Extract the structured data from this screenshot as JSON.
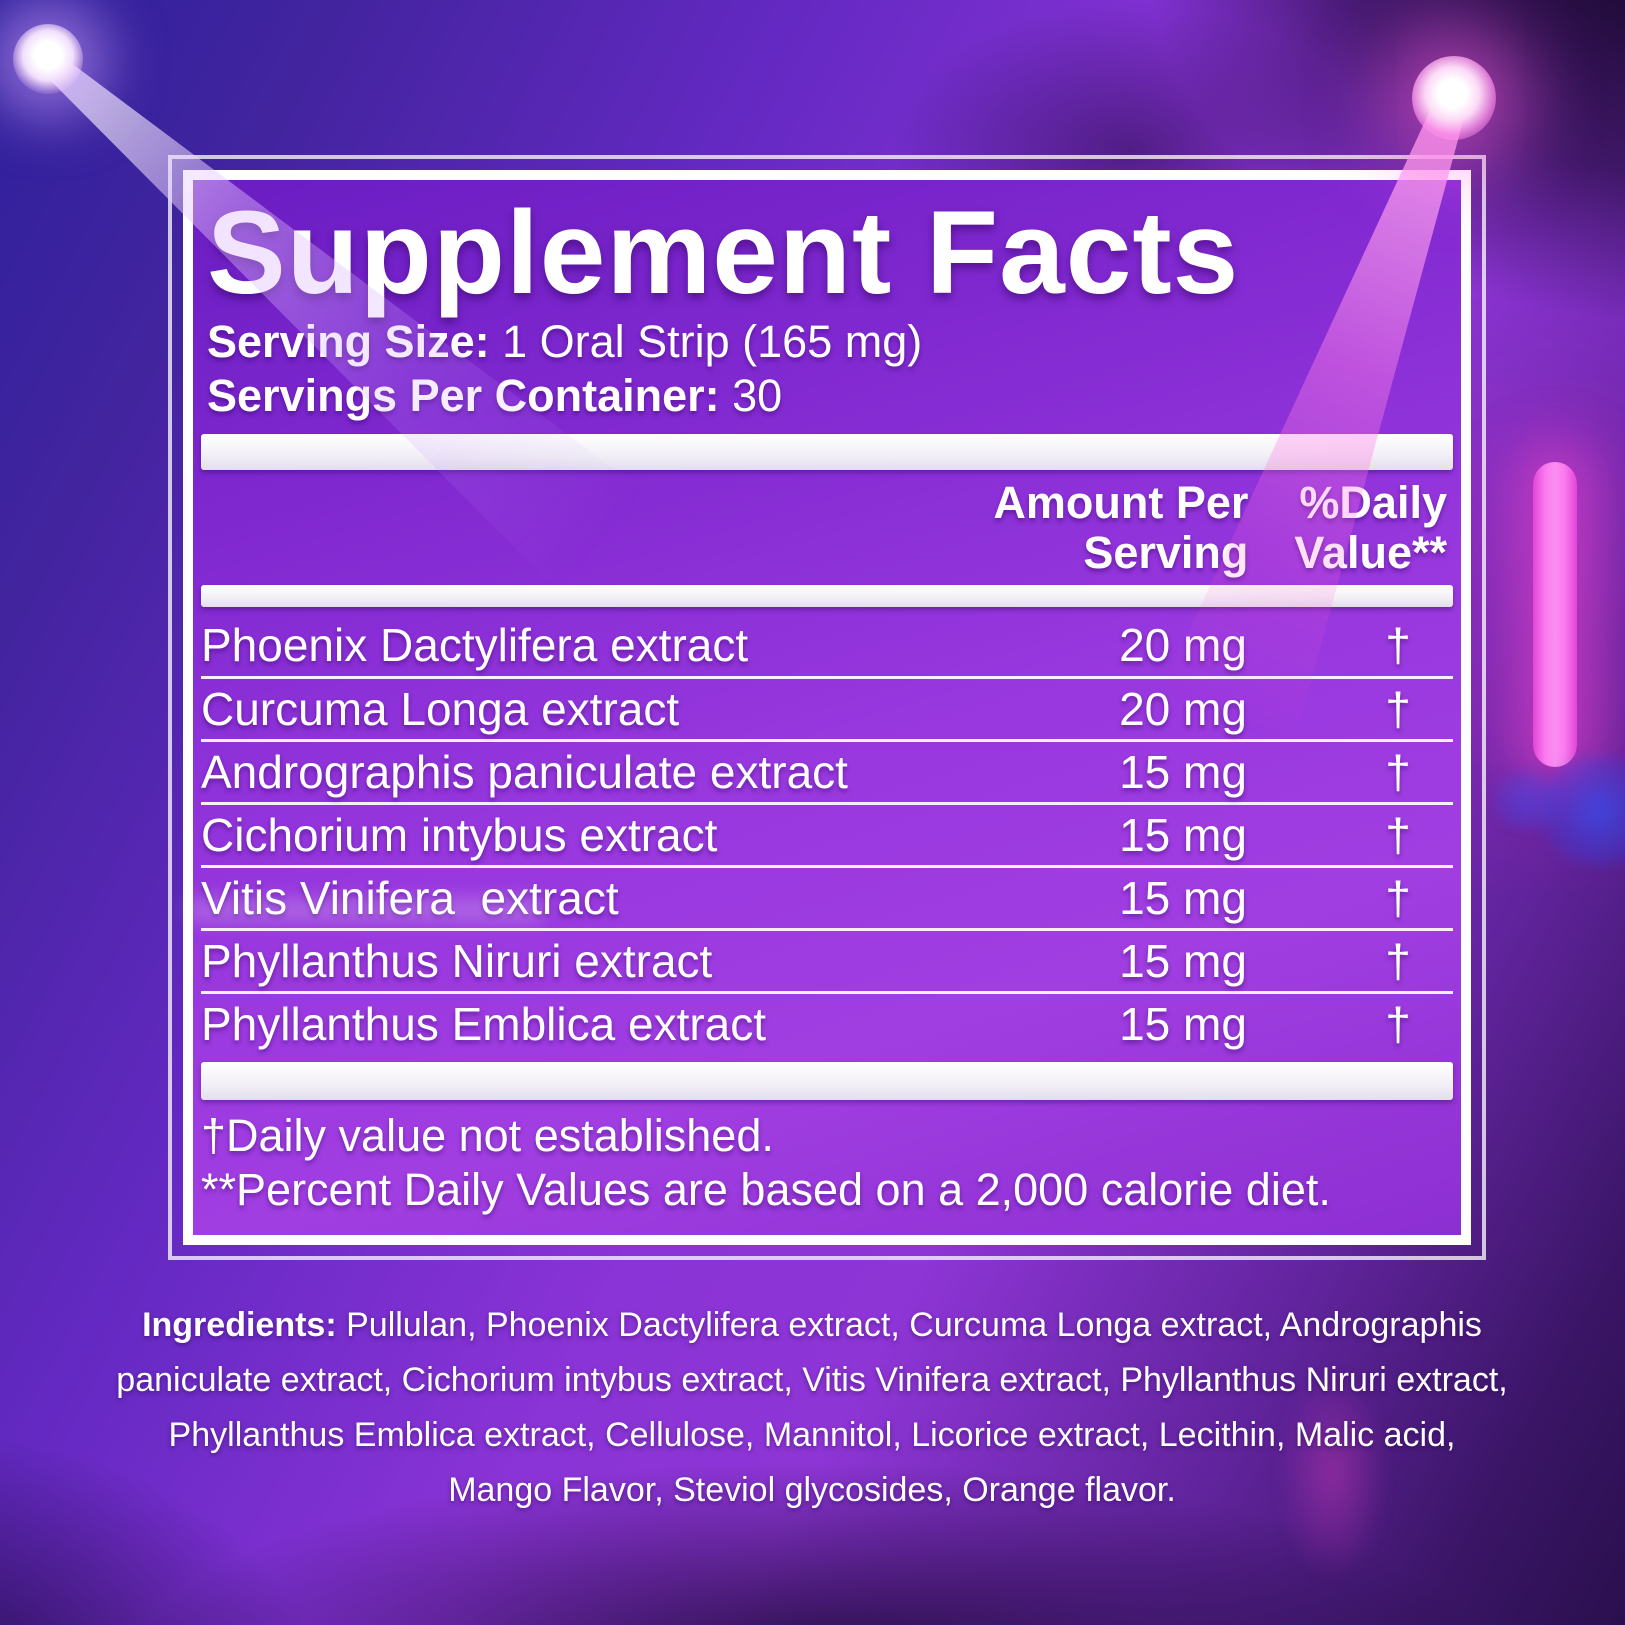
{
  "panel": {
    "title": "Supplement Facts",
    "serving_size_label": "Serving Size:",
    "serving_size_value": " 1 Oral Strip (165 mg)",
    "servings_per_container_label": "Servings Per Container:",
    "servings_per_container_value": " 30",
    "col_amount_header": "Amount Per\nServing",
    "col_dv_header": "%Daily\nValue**"
  },
  "rows": [
    {
      "name": "Phoenix Dactylifera extract",
      "amount": "20 mg",
      "daily_value": "†"
    },
    {
      "name": "Curcuma Longa extract",
      "amount": "20 mg",
      "daily_value": "†"
    },
    {
      "name": "Andrographis paniculate extract",
      "amount": "15 mg",
      "daily_value": "†"
    },
    {
      "name": "Cichorium intybus extract",
      "amount": "15 mg",
      "daily_value": "†"
    },
    {
      "name": "Vitis Vinifera  extract",
      "amount": "15 mg",
      "daily_value": "†"
    },
    {
      "name": "Phyllanthus Niruri extract",
      "amount": "15 mg",
      "daily_value": "†"
    },
    {
      "name": "Phyllanthus Emblica extract",
      "amount": "15 mg",
      "daily_value": "†"
    }
  ],
  "footnotes": [
    "†Daily value not established.",
    "**Percent Daily Values are based on a 2,000 calorie diet."
  ],
  "ingredients": {
    "label": "Ingredients:",
    "text": " Pullulan, Phoenix Dactylifera extract, Curcuma Longa extract, Andrographis paniculate extract, Cichorium intybus extract, Vitis Vinifera extract, Phyllanthus Niruri extract, Phyllanthus Emblica extract, Cellulose, Mannitol, Licorice extract, Lecithin, Malic acid, Mango Flavor, Steviol glycosides, Orange flavor."
  },
  "colors": {
    "panel_purple": "#9737DE",
    "background_indigo": "#2E209C",
    "neon_pink": "#F97BEE",
    "beam_lavender": "#E2C0FF",
    "beam_pink": "#FF80E8",
    "panel_border": "#FFFFFF",
    "text": "#FFFFFF"
  }
}
